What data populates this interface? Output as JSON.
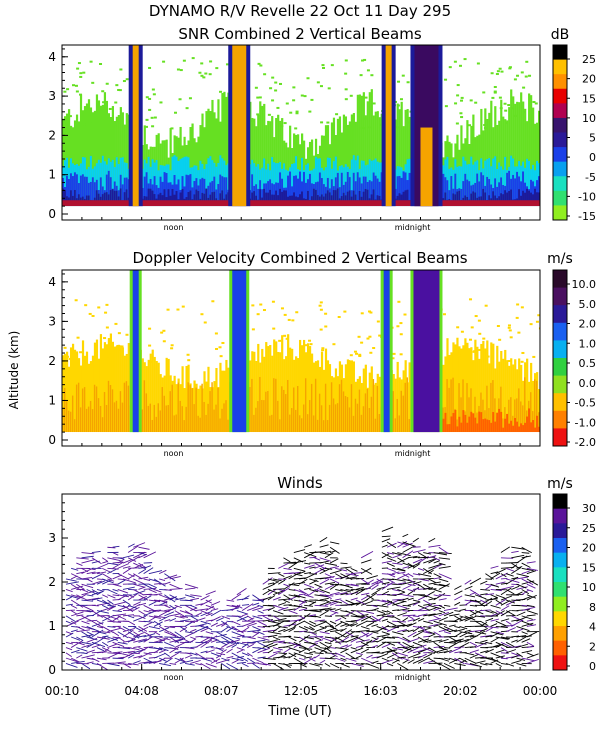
{
  "page": {
    "title": "DYNAMO R/V Revelle  22 Oct 11 Day 295",
    "ylabel": "Altitude (km)",
    "xlabel": "Time (UT)"
  },
  "time_axis": {
    "tick_labels": [
      "00:10",
      "04:08",
      "08:07",
      "12:05",
      "16:03",
      "20:02",
      "00:00"
    ],
    "markers": [
      "noon",
      "midnight"
    ]
  },
  "colors": {
    "green": "#66e022",
    "cyan": "#08d0f0",
    "blue": "#1a40e8",
    "navy": "#1c1a9a",
    "purple": "#5a149a",
    "orange": "#f5a400",
    "yellow": "#ffd700",
    "red": "#ee1111"
  },
  "chart_data": [
    {
      "type": "heatmap",
      "title": "SNR Combined 2 Vertical Beams",
      "ylabel": "Altitude (km)",
      "yticks": [
        "0",
        "1",
        "2",
        "3",
        "4"
      ],
      "ylim": [
        0,
        4.3
      ],
      "colorbar": {
        "unit": "dB",
        "labels": [
          "25",
          "20",
          "15",
          "10",
          "5",
          "0",
          "-5",
          "-10",
          "-15"
        ],
        "colors": [
          "#000000",
          "#ffc000",
          "#ff9000",
          "#e80000",
          "#b00050",
          "#38146e",
          "#2a1a98",
          "#1a40e8",
          "#08a0f0",
          "#19e0c0",
          "#30e070",
          "#90ee20"
        ]
      },
      "features": [
        {
          "label": "strong echo column",
          "time_h": 3.7,
          "top_km": 4.3
        },
        {
          "label": "strong echo column",
          "time_h": 8.9,
          "top_km": 4.3
        },
        {
          "label": "strong echo column",
          "time_h": 16.4,
          "top_km": 4.3
        },
        {
          "label": "strong echo column",
          "time_h": 18.3,
          "top_km": 4.3
        }
      ]
    },
    {
      "type": "heatmap",
      "title": "Doppler Velocity Combined 2 Vertical Beams",
      "ylabel": "Altitude (km)",
      "yticks": [
        "0",
        "1",
        "2",
        "3",
        "4"
      ],
      "ylim": [
        0,
        4.3
      ],
      "colorbar": {
        "unit": "m/s",
        "labels": [
          "10.0",
          "5.0",
          "2.0",
          "1.0",
          "0.5",
          "0.0",
          "-0.5",
          "-1.0",
          "-2.0"
        ],
        "colors": [
          "#2a0a2a",
          "#4a1060",
          "#2a1a98",
          "#1a60f0",
          "#08b0f0",
          "#30d040",
          "#90e020",
          "#ffc000",
          "#ff8000",
          "#ee1111"
        ]
      }
    },
    {
      "type": "scatter",
      "title": "Winds",
      "ylabel": "Altitude (km)",
      "yticks": [
        "0",
        "1",
        "2",
        "3"
      ],
      "ylim": [
        0,
        4
      ],
      "colorbar": {
        "unit": "m/s",
        "labels": [
          "30",
          "25",
          "20",
          "15",
          "10",
          "8",
          "4",
          "2",
          "0"
        ],
        "colors": [
          "#000000",
          "#5a149a",
          "#2a1a98",
          "#1a60f0",
          "#08b0f0",
          "#19e0c0",
          "#30e070",
          "#90ee20",
          "#ffd700",
          "#ffa000",
          "#ff6000",
          "#ee1111"
        ]
      }
    }
  ]
}
